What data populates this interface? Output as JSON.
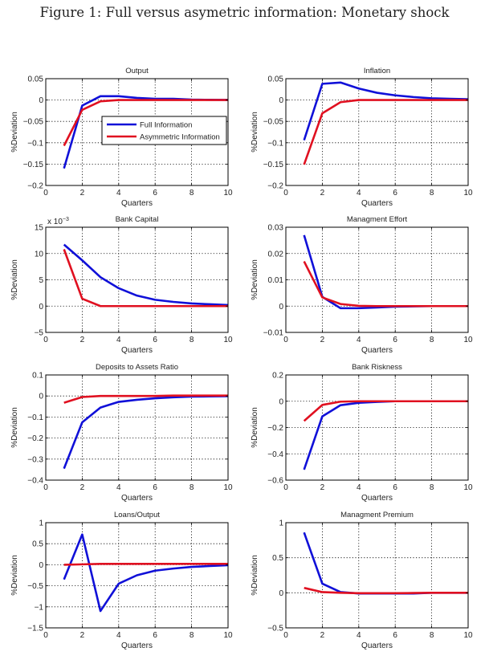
{
  "figure_title": "Figure 1: Full versus asymetric information: Monetary shock",
  "colors": {
    "full": "#1010d8",
    "asym": "#e01020",
    "grid": "#000000"
  },
  "chart_data": [
    {
      "type": "line",
      "title": "Output",
      "xlabel": "Quarters",
      "ylabel": "%Deviation",
      "xlim": [
        0,
        10
      ],
      "ylim": [
        -0.2,
        0.05
      ],
      "xticks": [
        0,
        2,
        4,
        6,
        8,
        10
      ],
      "yticks": [
        -0.2,
        -0.15,
        -0.1,
        -0.05,
        0,
        0.05
      ],
      "ytick_labels": [
        "−0.2",
        "−0.15",
        "−0.1",
        "−0.05",
        "0",
        "0.05"
      ],
      "grid": true,
      "legend": {
        "placement": "center-right",
        "entries": [
          "Full Information",
          "Asymmetric Information"
        ]
      },
      "x": [
        1,
        2,
        3,
        4,
        5,
        6,
        7,
        8,
        9,
        10
      ],
      "series": [
        {
          "name": "Full Information",
          "values": [
            -0.16,
            -0.013,
            0.009,
            0.009,
            0.005,
            0.003,
            0.003,
            0.001,
            0.0005,
            0.0003
          ]
        },
        {
          "name": "Asymmetric Information",
          "values": [
            -0.107,
            -0.023,
            -0.003,
            0.0,
            0.0,
            0.0,
            0.0,
            0.0,
            0.0,
            0.0
          ]
        }
      ]
    },
    {
      "type": "line",
      "title": "Inflation",
      "xlabel": "Quarters",
      "ylabel": "%Deviation",
      "xlim": [
        0,
        10
      ],
      "ylim": [
        -0.2,
        0.05
      ],
      "xticks": [
        0,
        2,
        4,
        6,
        8,
        10
      ],
      "yticks": [
        -0.2,
        -0.15,
        -0.1,
        -0.05,
        0,
        0.05
      ],
      "ytick_labels": [
        "−0.2",
        "−0.15",
        "−0.1",
        "−0.05",
        "0",
        "0.05"
      ],
      "grid": true,
      "x": [
        1,
        2,
        3,
        4,
        5,
        6,
        7,
        8,
        9,
        10
      ],
      "series": [
        {
          "name": "Full Information",
          "values": [
            -0.094,
            0.038,
            0.041,
            0.027,
            0.017,
            0.011,
            0.007,
            0.004,
            0.003,
            0.002
          ]
        },
        {
          "name": "Asymmetric Information",
          "values": [
            -0.151,
            -0.031,
            -0.005,
            0.0,
            0.0,
            0.0,
            0.0,
            0.0,
            0.0,
            0.0
          ]
        }
      ]
    },
    {
      "type": "line",
      "title": "Bank Capital",
      "xlabel": "Quarters",
      "ylabel": "%Deviation",
      "yscale_label": "x 10",
      "yscale_exp": "−3",
      "xlim": [
        0,
        10
      ],
      "ylim": [
        -5,
        15
      ],
      "xticks": [
        0,
        2,
        4,
        6,
        8,
        10
      ],
      "yticks": [
        -5,
        0,
        5,
        10,
        15
      ],
      "ytick_labels": [
        "−5",
        "0",
        "5",
        "10",
        "15"
      ],
      "grid": true,
      "x": [
        1,
        2,
        3,
        4,
        5,
        6,
        7,
        8,
        9,
        10
      ],
      "series": [
        {
          "name": "Full Information",
          "values": [
            11.7,
            8.7,
            5.5,
            3.4,
            2.0,
            1.2,
            0.8,
            0.5,
            0.35,
            0.2
          ]
        },
        {
          "name": "Asymmetric Information",
          "values": [
            10.8,
            1.4,
            0.0,
            0.0,
            0.0,
            0.0,
            0.0,
            0.0,
            0.0,
            0.0
          ]
        }
      ]
    },
    {
      "type": "line",
      "title": "Managment Effort",
      "xlabel": "Quarters",
      "ylabel": "%Deviation",
      "xlim": [
        0,
        10
      ],
      "ylim": [
        -0.01,
        0.03
      ],
      "xticks": [
        0,
        2,
        4,
        6,
        8,
        10
      ],
      "yticks": [
        -0.01,
        0,
        0.01,
        0.02,
        0.03
      ],
      "ytick_labels": [
        "−0.01",
        "0",
        "0.01",
        "0.02",
        "0.03"
      ],
      "grid": true,
      "x": [
        1,
        2,
        3,
        4,
        5,
        6,
        7,
        8,
        9,
        10
      ],
      "series": [
        {
          "name": "Full Information",
          "values": [
            0.027,
            0.0035,
            -0.0008,
            -0.0008,
            -0.0005,
            -0.0002,
            -0.0001,
            0.0,
            0.0,
            0.0
          ]
        },
        {
          "name": "Asymmetric Information",
          "values": [
            0.017,
            0.0033,
            0.0008,
            0.0001,
            0.0,
            0.0,
            0.0,
            0.0,
            0.0,
            0.0
          ]
        }
      ]
    },
    {
      "type": "line",
      "title": "Deposits to Assets Ratio",
      "xlabel": "Quarters",
      "ylabel": "%Deviation",
      "xlim": [
        0,
        10
      ],
      "ylim": [
        -0.4,
        0.1
      ],
      "xticks": [
        0,
        2,
        4,
        6,
        8,
        10
      ],
      "yticks": [
        -0.4,
        -0.3,
        -0.2,
        -0.1,
        0,
        0.1
      ],
      "ytick_labels": [
        "−0.4",
        "−0.3",
        "−0.2",
        "−0.1",
        "0",
        "0.1"
      ],
      "grid": true,
      "x": [
        1,
        2,
        3,
        4,
        5,
        6,
        7,
        8,
        9,
        10
      ],
      "series": [
        {
          "name": "Full Information",
          "values": [
            -0.345,
            -0.125,
            -0.055,
            -0.028,
            -0.018,
            -0.011,
            -0.006,
            -0.003,
            -0.002,
            -0.001
          ]
        },
        {
          "name": "Asymmetric Information",
          "values": [
            -0.032,
            -0.005,
            0.0,
            0.0,
            0.0,
            0.0,
            0.002,
            0.002,
            0.002,
            0.002
          ]
        }
      ]
    },
    {
      "type": "line",
      "title": "Bank Riskness",
      "xlabel": "Quarters",
      "ylabel": "%Deviation",
      "xlim": [
        0,
        10
      ],
      "ylim": [
        -0.6,
        0.2
      ],
      "xticks": [
        0,
        2,
        4,
        6,
        8,
        10
      ],
      "yticks": [
        -0.6,
        -0.4,
        -0.2,
        0,
        0.2
      ],
      "ytick_labels": [
        "−0.6",
        "−0.4",
        "−0.2",
        "0",
        "0.2"
      ],
      "grid": true,
      "x": [
        1,
        2,
        3,
        4,
        5,
        6,
        7,
        8,
        9,
        10
      ],
      "series": [
        {
          "name": "Full Information",
          "values": [
            -0.52,
            -0.115,
            -0.03,
            -0.012,
            -0.005,
            0.0,
            0.0,
            0.0,
            0.0,
            0.0
          ]
        },
        {
          "name": "Asymmetric Information",
          "values": [
            -0.15,
            -0.028,
            -0.003,
            0.0,
            0.0,
            0.0,
            0.0,
            0.0,
            0.0,
            0.0
          ]
        }
      ]
    },
    {
      "type": "line",
      "title": "Loans/Output",
      "xlabel": "Quarters",
      "ylabel": "%Deviation",
      "xlim": [
        0,
        10
      ],
      "ylim": [
        -1.5,
        1
      ],
      "xticks": [
        0,
        2,
        4,
        6,
        8,
        10
      ],
      "yticks": [
        -1.5,
        -1,
        -0.5,
        0,
        0.5,
        1
      ],
      "ytick_labels": [
        "−1.5",
        "−1",
        "−0.5",
        "0",
        "0.5",
        "1"
      ],
      "grid": true,
      "x": [
        1,
        2,
        3,
        4,
        5,
        6,
        7,
        8,
        9,
        10
      ],
      "series": [
        {
          "name": "Full Information",
          "values": [
            -0.35,
            0.72,
            -1.1,
            -0.45,
            -0.25,
            -0.14,
            -0.09,
            -0.05,
            -0.03,
            -0.01
          ]
        },
        {
          "name": "Asymmetric Information",
          "values": [
            0.0,
            0.01,
            0.02,
            0.02,
            0.02,
            0.02,
            0.02,
            0.02,
            0.02,
            0.02
          ]
        }
      ]
    },
    {
      "type": "line",
      "title": "Managment Premium",
      "xlabel": "Quarters",
      "ylabel": "%Deviation",
      "xlim": [
        0,
        10
      ],
      "ylim": [
        -0.5,
        1
      ],
      "xticks": [
        0,
        2,
        4,
        6,
        8,
        10
      ],
      "yticks": [
        -0.5,
        0,
        0.5,
        1
      ],
      "ytick_labels": [
        "−0.5",
        "0",
        "0.5",
        "1"
      ],
      "grid": true,
      "x": [
        1,
        2,
        3,
        4,
        5,
        6,
        7,
        8,
        9,
        10
      ],
      "series": [
        {
          "name": "Full Information",
          "values": [
            0.86,
            0.13,
            0.01,
            -0.01,
            -0.01,
            -0.01,
            -0.01,
            0.0,
            0.0,
            0.0
          ]
        },
        {
          "name": "Asymmetric Information",
          "values": [
            0.07,
            0.01,
            0.0,
            -0.005,
            -0.005,
            -0.005,
            -0.003,
            0.0,
            0.0,
            0.0
          ]
        }
      ]
    }
  ]
}
